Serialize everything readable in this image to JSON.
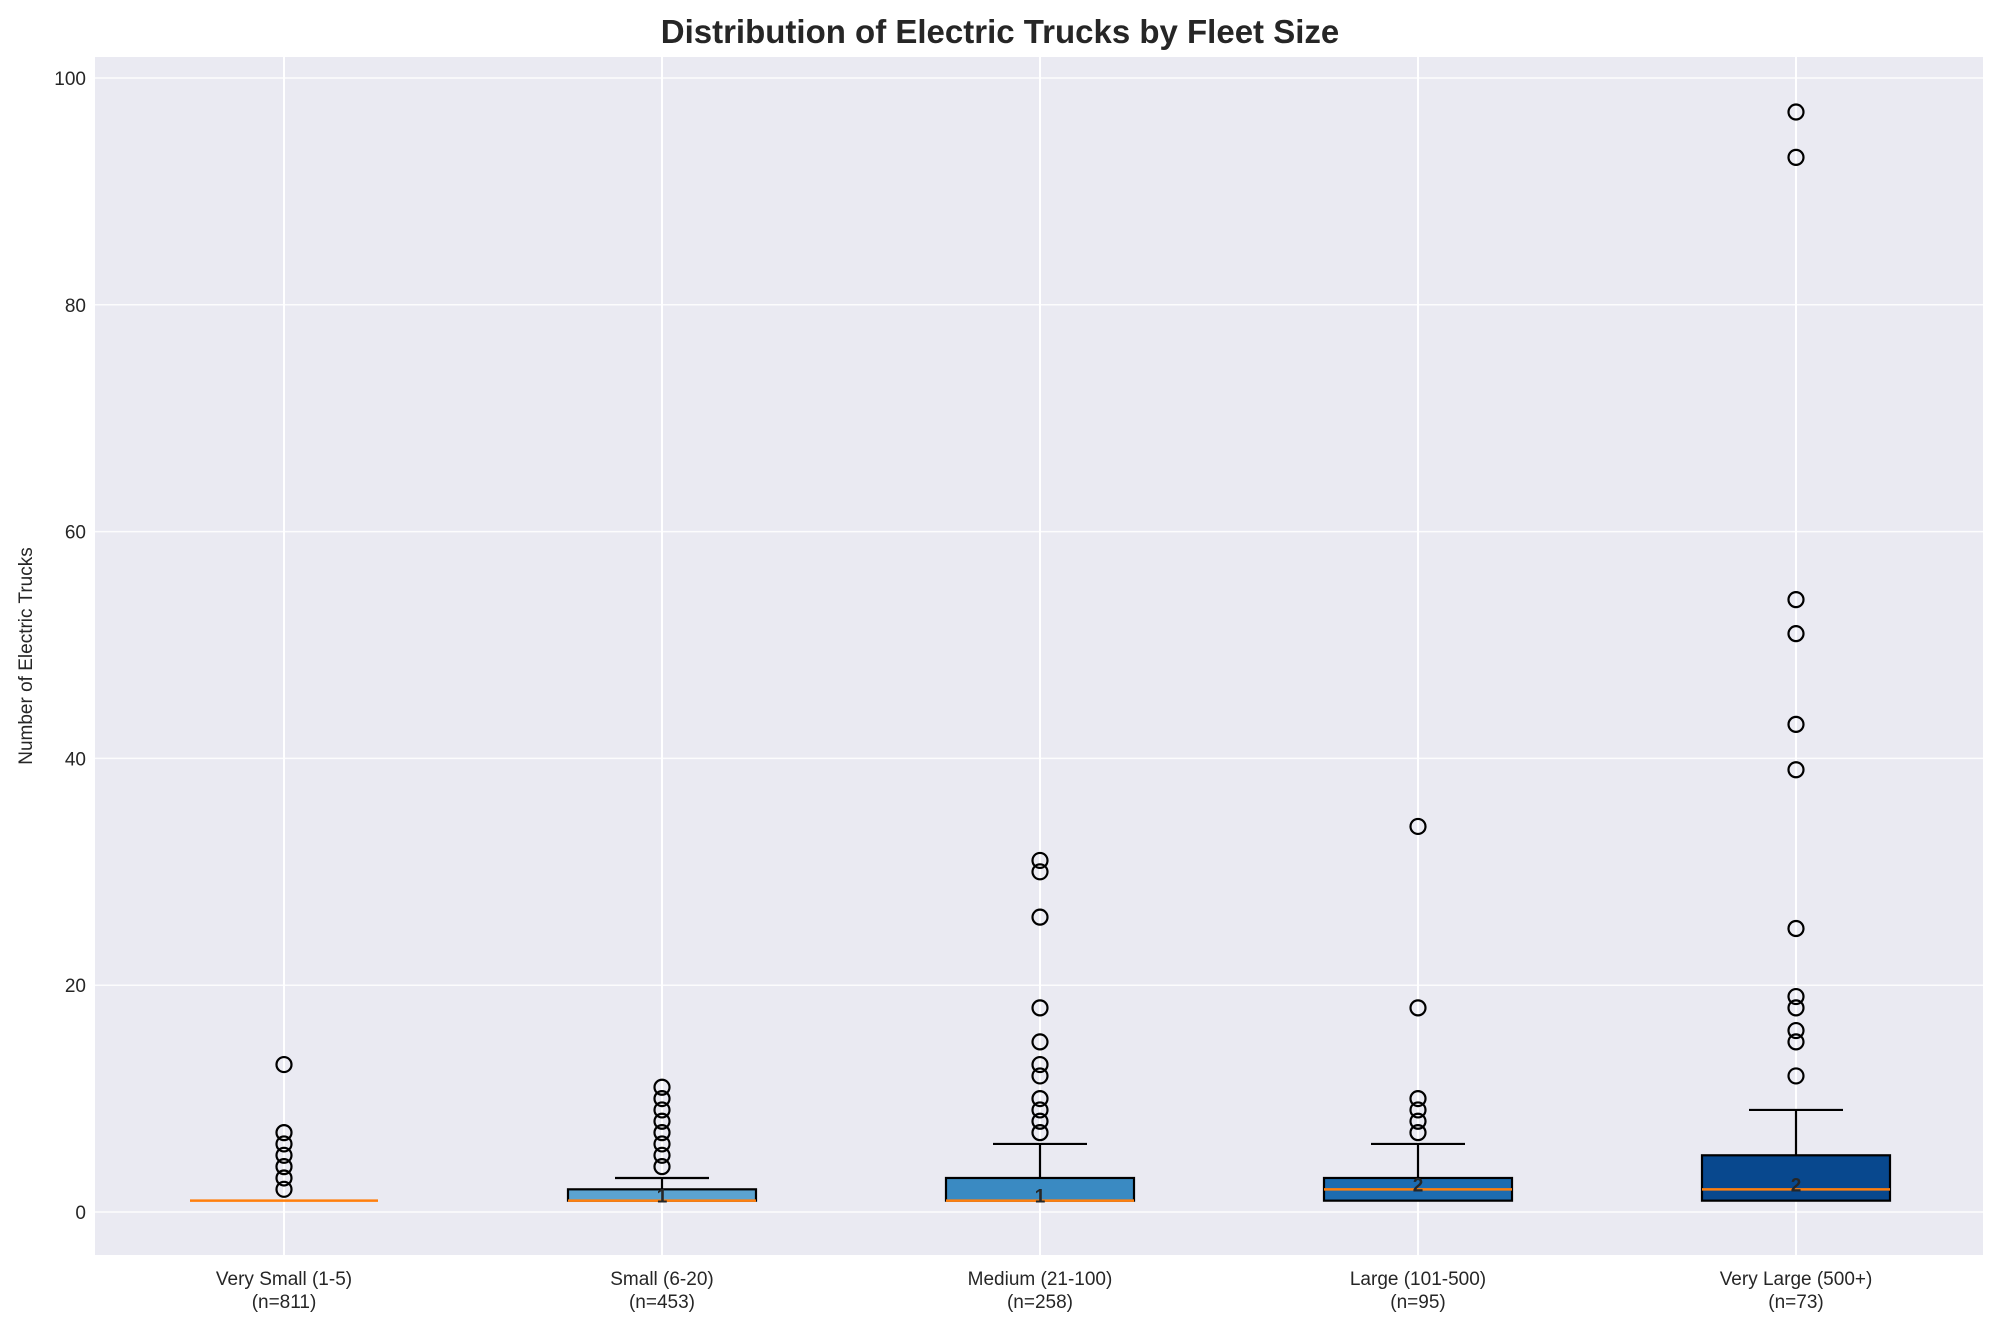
{
  "chart_data": {
    "type": "box",
    "title": "Distribution of Electric Trucks by Fleet Size",
    "xlabel": "",
    "ylabel": "Number of Electric Trucks",
    "ylim": [
      -4,
      102
    ],
    "yticks": [
      0,
      20,
      40,
      60,
      80,
      100
    ],
    "grid": true,
    "legend": null,
    "categories": [
      "Very Small (1-5)\n(n=811)",
      "Small (6-20)\n(n=453)",
      "Medium (21-100)\n(n=258)",
      "Large (101-500)\n(n=95)",
      "Very Large (500+)\n(n=73)"
    ],
    "series": [
      {
        "name": "Very Small (1-5)",
        "n": 811,
        "whisker_low": 1,
        "q1": 1,
        "median": 1,
        "q3": 1,
        "whisker_high": 1,
        "median_label": null,
        "outliers": [
          2,
          3,
          4,
          5,
          6,
          7,
          13
        ],
        "color": "#6baed6"
      },
      {
        "name": "Small (6-20)",
        "n": 453,
        "whisker_low": 1,
        "q1": 1,
        "median": 1,
        "q3": 2,
        "whisker_high": 3,
        "median_label": "1",
        "outliers": [
          4,
          5,
          6,
          7,
          8,
          9,
          10,
          11
        ],
        "color": "#5ba3d0"
      },
      {
        "name": "Medium (21-100)",
        "n": 258,
        "whisker_low": 1,
        "q1": 1,
        "median": 1,
        "q3": 3,
        "whisker_high": 6,
        "median_label": "1",
        "outliers": [
          7,
          8,
          9,
          10,
          12,
          13,
          15,
          18,
          26,
          30,
          31
        ],
        "color": "#3a8ac2"
      },
      {
        "name": "Large (101-500)",
        "n": 95,
        "whisker_low": 1,
        "q1": 1,
        "median": 2,
        "q3": 3,
        "whisker_high": 6,
        "median_label": "2",
        "outliers": [
          7,
          8,
          9,
          10,
          18,
          34
        ],
        "color": "#1d6cb1"
      },
      {
        "name": "Very Large (500+)",
        "n": 73,
        "whisker_low": 1,
        "q1": 1,
        "median": 2,
        "q3": 5,
        "whisker_high": 9,
        "median_label": "2",
        "outliers": [
          12,
          15,
          16,
          18,
          19,
          25,
          39,
          43,
          51,
          54,
          93,
          97
        ],
        "color": "#08488e"
      }
    ]
  },
  "labels": {
    "title": "Distribution of Electric Trucks by Fleet Size",
    "ylabel": "Number of Electric Trucks",
    "x_categories": [
      {
        "name": "Very Small (1-5)",
        "n": "(n=811)"
      },
      {
        "name": "Small (6-20)",
        "n": "(n=453)"
      },
      {
        "name": "Medium (21-100)",
        "n": "(n=258)"
      },
      {
        "name": "Large (101-500)",
        "n": "(n=95)"
      },
      {
        "name": "Very Large (500+)",
        "n": "(n=73)"
      }
    ],
    "yticks": [
      "0",
      "20",
      "40",
      "60",
      "80",
      "100"
    ]
  },
  "style": {
    "plot_bg": "#eaeaf2",
    "grid": "#ffffff",
    "median": "#ff7f0e",
    "edge": "#000000"
  }
}
